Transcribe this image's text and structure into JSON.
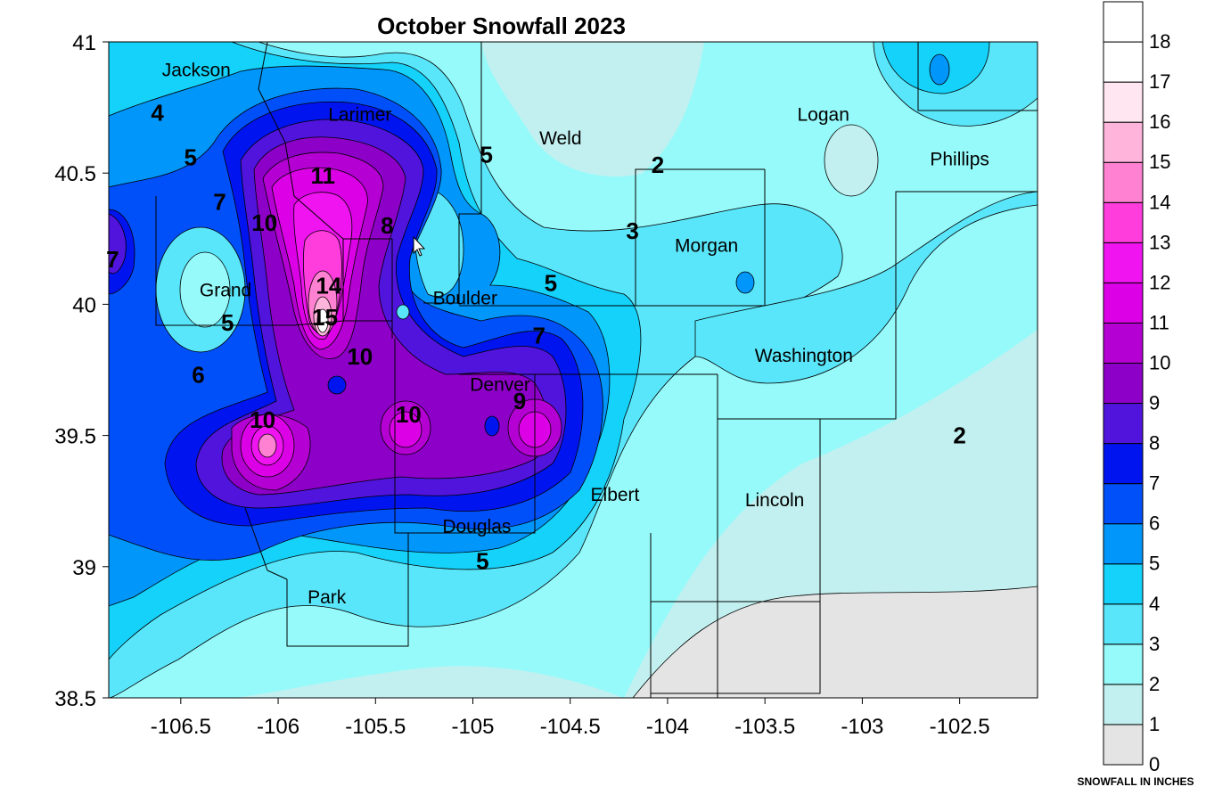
{
  "title": "October Snowfall 2023",
  "axes": {
    "x_ticks": [
      "-106.5",
      "-106",
      "-105.5",
      "-105",
      "-104.5",
      "-104",
      "-103.5",
      "-103",
      "-102.5"
    ],
    "x_values": [
      -106.5,
      -106,
      -105.5,
      -105,
      -104.5,
      -104,
      -103.5,
      -103,
      -102.5
    ],
    "y_ticks": [
      "41",
      "40.5",
      "40",
      "39.5",
      "39",
      "38.5"
    ],
    "y_values": [
      41,
      40.5,
      40,
      39.5,
      39,
      38.5
    ],
    "lon_range": [
      -106.87,
      -102.1
    ],
    "lat_range": [
      38.5,
      41
    ]
  },
  "counties": [
    {
      "name": "Jackson",
      "lon": -106.42,
      "lat": 40.87
    },
    {
      "name": "Larimer",
      "lon": -105.58,
      "lat": 40.7
    },
    {
      "name": "Weld",
      "lon": -104.55,
      "lat": 40.61
    },
    {
      "name": "Logan",
      "lon": -103.2,
      "lat": 40.7
    },
    {
      "name": "Phillips",
      "lon": -102.5,
      "lat": 40.53
    },
    {
      "name": "Morgan",
      "lon": -103.8,
      "lat": 40.2
    },
    {
      "name": "Grand",
      "lon": -106.27,
      "lat": 40.03
    },
    {
      "name": "Boulder",
      "lon": -105.04,
      "lat": 40.0
    },
    {
      "name": "Washington",
      "lon": -103.3,
      "lat": 39.78
    },
    {
      "name": "Denver",
      "lon": -104.86,
      "lat": 39.67
    },
    {
      "name": "Elbert",
      "lon": -104.27,
      "lat": 39.25
    },
    {
      "name": "Lincoln",
      "lon": -103.45,
      "lat": 39.23
    },
    {
      "name": "Douglas",
      "lon": -104.98,
      "lat": 39.13
    },
    {
      "name": "Park",
      "lon": -105.75,
      "lat": 38.86
    }
  ],
  "contour_labels": [
    {
      "text": "4",
      "lon": -106.62,
      "lat": 40.7
    },
    {
      "text": "5",
      "lon": -106.45,
      "lat": 40.53
    },
    {
      "text": "7",
      "lon": -106.3,
      "lat": 40.36
    },
    {
      "text": "10",
      "lon": -106.07,
      "lat": 40.28
    },
    {
      "text": "11",
      "lon": -105.77,
      "lat": 40.46
    },
    {
      "text": "5",
      "lon": -104.93,
      "lat": 40.54
    },
    {
      "text": "2",
      "lon": -104.05,
      "lat": 40.5
    },
    {
      "text": "8",
      "lon": -105.44,
      "lat": 40.27
    },
    {
      "text": "3",
      "lon": -104.18,
      "lat": 40.25
    },
    {
      "text": "7",
      "lon": -106.85,
      "lat": 40.14
    },
    {
      "text": "14",
      "lon": -105.74,
      "lat": 40.04
    },
    {
      "text": "15",
      "lon": -105.76,
      "lat": 39.92
    },
    {
      "text": "5",
      "lon": -104.6,
      "lat": 40.05
    },
    {
      "text": "5",
      "lon": -106.26,
      "lat": 39.9
    },
    {
      "text": "7",
      "lon": -104.66,
      "lat": 39.85
    },
    {
      "text": "10",
      "lon": -105.58,
      "lat": 39.77
    },
    {
      "text": "6",
      "lon": -106.41,
      "lat": 39.7
    },
    {
      "text": "9",
      "lon": -104.76,
      "lat": 39.6
    },
    {
      "text": "10",
      "lon": -106.08,
      "lat": 39.53
    },
    {
      "text": "10",
      "lon": -105.33,
      "lat": 39.55
    },
    {
      "text": "2",
      "lon": -102.5,
      "lat": 39.47
    },
    {
      "text": "5",
      "lon": -104.95,
      "lat": 38.99
    }
  ],
  "legend": {
    "labels": [
      "0",
      "1",
      "2",
      "3",
      "4",
      "5",
      "6",
      "7",
      "8",
      "9",
      "10",
      "11",
      "12",
      "13",
      "14",
      "15",
      "16",
      "17",
      "18"
    ],
    "colors": [
      "#e4e4e4",
      "#c2f0f0",
      "#96fafa",
      "#5ae6fa",
      "#14d2fa",
      "#0096fa",
      "#0050fa",
      "#0014f0",
      "#5014dc",
      "#8c00c8",
      "#b400d2",
      "#dc00e6",
      "#f014f0",
      "#ff3cdc",
      "#ff82d2",
      "#ffb4dc",
      "#ffe6f0",
      "#ffffff",
      "#ffffff"
    ],
    "unit_label": "SNOWFALL IN INCHES"
  },
  "colors": {
    "background": "#96fafa",
    "outline": "#000000"
  }
}
